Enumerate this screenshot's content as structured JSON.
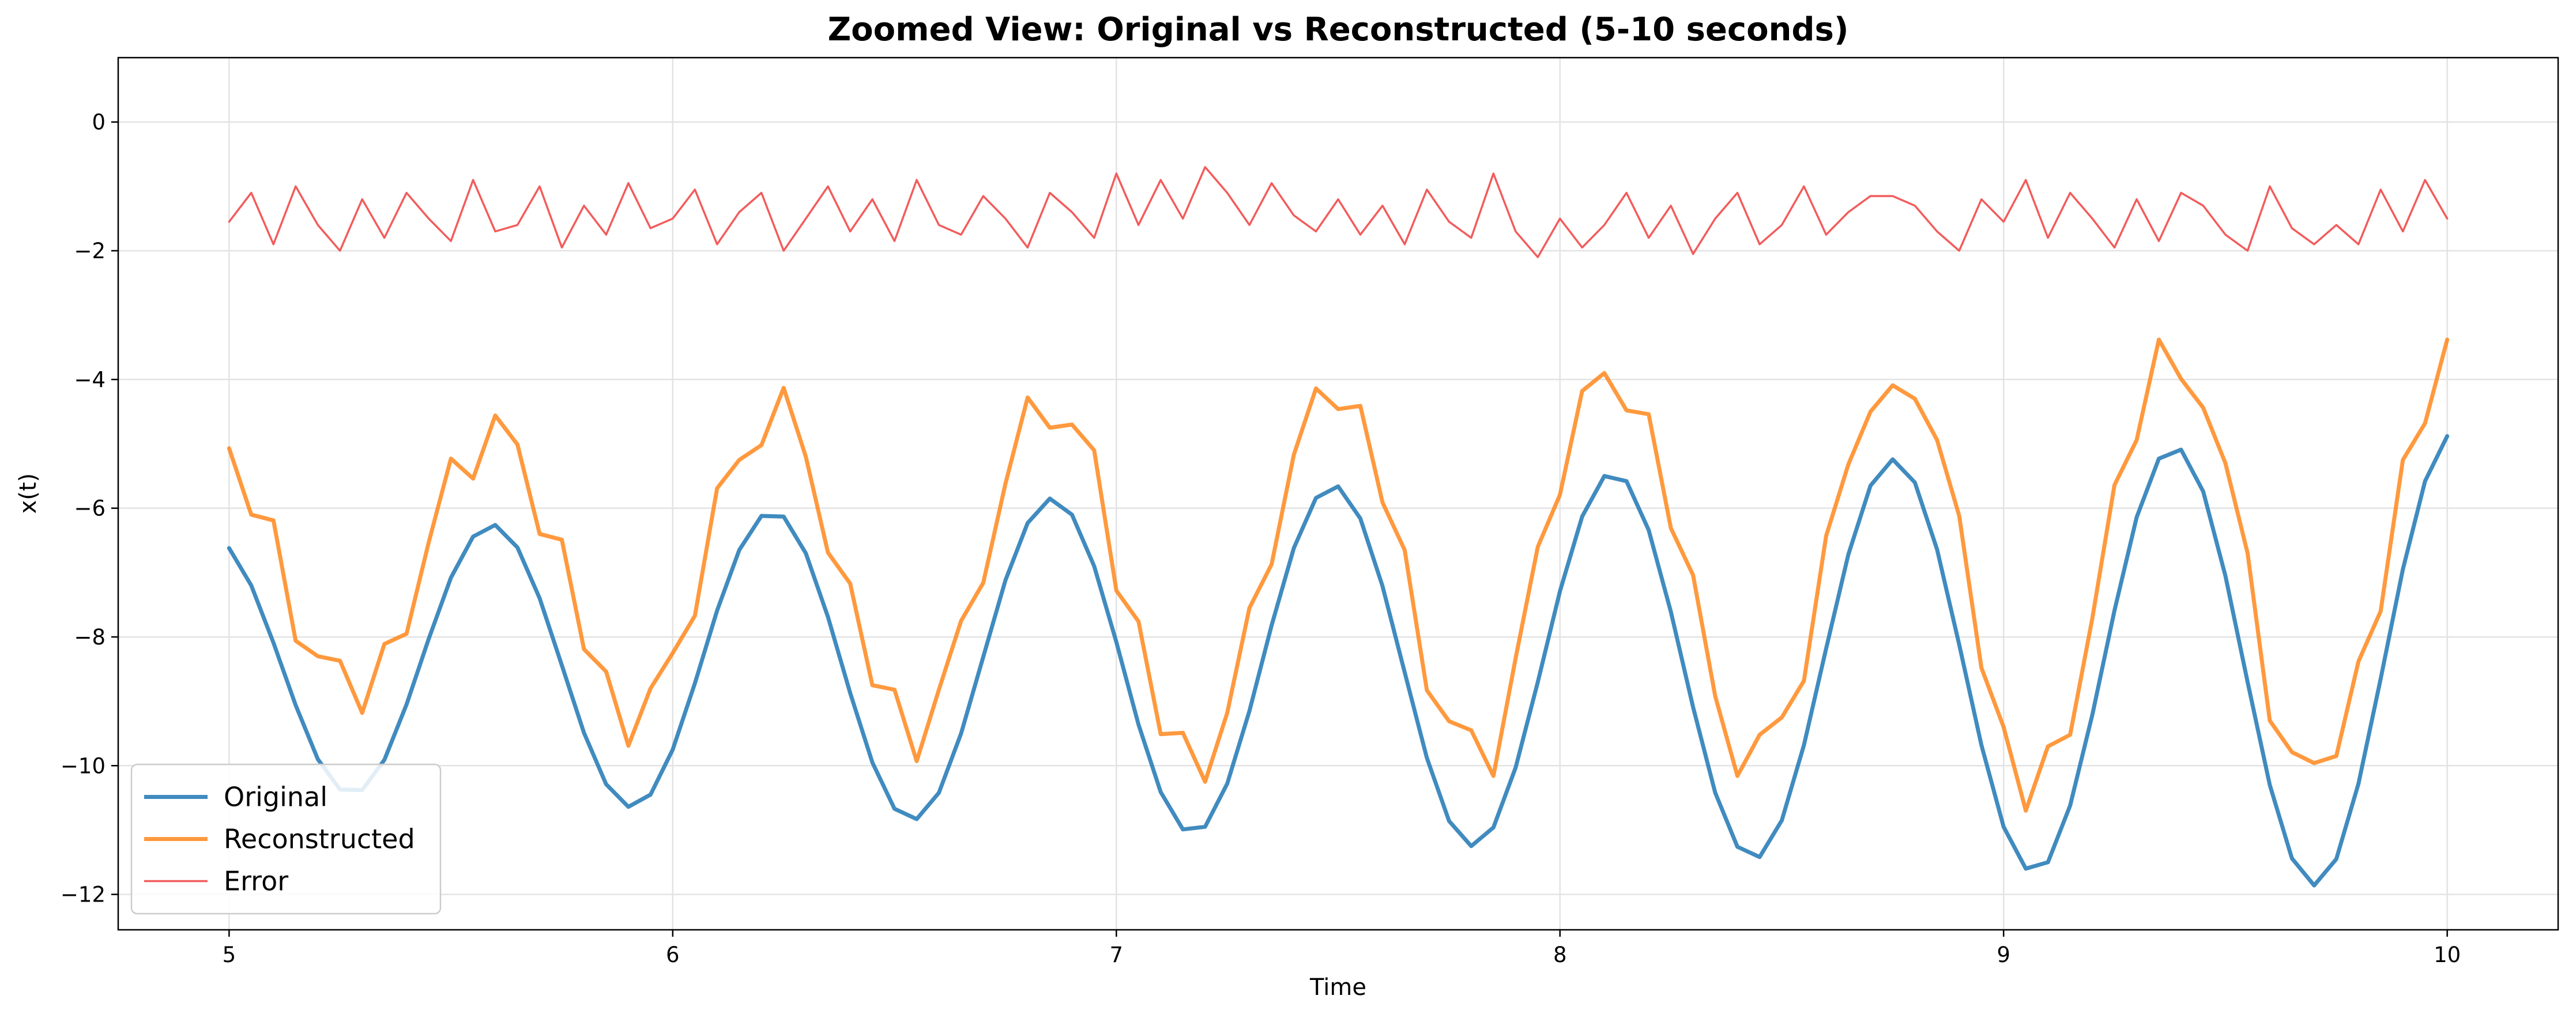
{
  "chart_data": {
    "type": "line",
    "title": "Zoomed View: Original vs Reconstructed (5-10 seconds)",
    "x_label": "Time",
    "y_label": "x(t)",
    "x": [
      5,
      5.05,
      5.1,
      5.15,
      5.2,
      5.25,
      5.3,
      5.35,
      5.4,
      5.45,
      5.5,
      5.55,
      5.6,
      5.65,
      5.7,
      5.75,
      5.8,
      5.85,
      5.9,
      5.95,
      6,
      6.05,
      6.1,
      6.15,
      6.2,
      6.25,
      6.3,
      6.35,
      6.4,
      6.45,
      6.5,
      6.55,
      6.6,
      6.65,
      6.7,
      6.75,
      6.8,
      6.85,
      6.9,
      6.95,
      7,
      7.05,
      7.1,
      7.15,
      7.2,
      7.25,
      7.3,
      7.35,
      7.4,
      7.45,
      7.5,
      7.55,
      7.6,
      7.65,
      7.7,
      7.75,
      7.8,
      7.85,
      7.9,
      7.95,
      8,
      8.05,
      8.1,
      8.15,
      8.2,
      8.25,
      8.3,
      8.35,
      8.4,
      8.45,
      8.5,
      8.55,
      8.6,
      8.65,
      8.7,
      8.75,
      8.8,
      8.85,
      8.9,
      8.95,
      9,
      9.05,
      9.1,
      9.15,
      9.2,
      9.25,
      9.3,
      9.35,
      9.4,
      9.45,
      9.5,
      9.55,
      9.6,
      9.65,
      9.7,
      9.75,
      9.8,
      9.85,
      9.9,
      9.95,
      10
    ],
    "series": [
      {
        "name": "Original",
        "color": "#1f77b4",
        "width": 7,
        "opacity": 0.85,
        "values": [
          -6.62,
          -7.2,
          -8.09,
          -9.06,
          -9.9,
          -10.37,
          -10.38,
          -9.91,
          -9.05,
          -8.03,
          -7.08,
          -6.44,
          -6.26,
          -6.61,
          -7.4,
          -8.44,
          -9.49,
          -10.29,
          -10.64,
          -10.45,
          -9.75,
          -8.72,
          -7.59,
          -6.65,
          -6.12,
          -6.13,
          -6.7,
          -7.69,
          -8.87,
          -9.95,
          -10.67,
          -10.83,
          -10.42,
          -9.5,
          -8.31,
          -7.12,
          -6.23,
          -5.85,
          -6.1,
          -6.9,
          -8.08,
          -9.36,
          -10.41,
          -10.99,
          -10.95,
          -10.28,
          -9.15,
          -7.82,
          -6.62,
          -5.84,
          -5.66,
          -6.16,
          -7.21,
          -8.55,
          -9.88,
          -10.86,
          -11.25,
          -10.96,
          -10.03,
          -8.7,
          -7.29,
          -6.13,
          -5.5,
          -5.58,
          -6.34,
          -7.61,
          -9.09,
          -10.42,
          -11.26,
          -11.42,
          -10.85,
          -9.68,
          -8.18,
          -6.72,
          -5.65,
          -5.24,
          -5.6,
          -6.64,
          -8.12,
          -9.68,
          -10.95,
          -11.6,
          -11.5,
          -10.62,
          -9.21,
          -7.59,
          -6.14,
          -5.23,
          -5.09,
          -5.74,
          -7.05,
          -8.7,
          -10.3,
          -11.44,
          -11.86,
          -11.45,
          -10.28,
          -8.65,
          -6.95,
          -5.58,
          -4.88
        ]
      },
      {
        "name": "Reconstructed",
        "color": "#ff7f0e",
        "width": 7,
        "opacity": 0.8,
        "values": [
          -5.07,
          -6.1,
          -6.19,
          -8.06,
          -8.3,
          -8.37,
          -9.18,
          -8.11,
          -7.95,
          -6.53,
          -5.23,
          -5.54,
          -4.56,
          -5.01,
          -6.4,
          -6.49,
          -8.19,
          -8.54,
          -9.69,
          -8.8,
          -8.25,
          -7.67,
          -5.69,
          -5.25,
          -5.02,
          -4.13,
          -5.2,
          -6.69,
          -7.17,
          -8.75,
          -8.82,
          -9.93,
          -8.82,
          -7.75,
          -7.16,
          -5.62,
          -4.28,
          -4.75,
          -4.7,
          -5.1,
          -7.28,
          -7.76,
          -9.51,
          -9.49,
          -10.25,
          -9.18,
          -7.55,
          -6.87,
          -5.17,
          -4.14,
          -4.46,
          -4.41,
          -5.91,
          -6.65,
          -8.83,
          -9.31,
          -9.45,
          -10.16,
          -8.33,
          -6.6,
          -5.79,
          -4.18,
          -3.9,
          -4.48,
          -4.54,
          -6.31,
          -7.04,
          -8.92,
          -10.16,
          -9.52,
          -9.25,
          -8.68,
          -6.43,
          -5.32,
          -4.5,
          -4.09,
          -4.3,
          -4.94,
          -6.12,
          -8.48,
          -9.4,
          -10.7,
          -9.7,
          -9.52,
          -7.71,
          -5.64,
          -4.94,
          -3.38,
          -3.99,
          -4.44,
          -5.3,
          -6.7,
          -9.3,
          -9.79,
          -9.96,
          -9.85,
          -8.38,
          -7.6,
          -5.25,
          -4.68,
          -3.38
        ]
      },
      {
        "name": "Error",
        "color": "#f25c5c",
        "width": 3.5,
        "opacity": 1,
        "values": [
          -1.55,
          -1.1,
          -1.9,
          -1.0,
          -1.6,
          -2.0,
          -1.2,
          -1.8,
          -1.1,
          -1.5,
          -1.85,
          -0.9,
          -1.7,
          -1.6,
          -1.0,
          -1.95,
          -1.3,
          -1.75,
          -0.95,
          -1.65,
          -1.5,
          -1.05,
          -1.9,
          -1.4,
          -1.1,
          -2.0,
          -1.5,
          -1.0,
          -1.7,
          -1.2,
          -1.85,
          -0.9,
          -1.6,
          -1.75,
          -1.15,
          -1.5,
          -1.95,
          -1.1,
          -1.4,
          -1.8,
          -0.8,
          -1.6,
          -0.9,
          -1.5,
          -0.7,
          -1.1,
          -1.6,
          -0.95,
          -1.45,
          -1.7,
          -1.2,
          -1.75,
          -1.3,
          -1.9,
          -1.05,
          -1.55,
          -1.8,
          -0.8,
          -1.7,
          -2.1,
          -1.5,
          -1.95,
          -1.6,
          -1.1,
          -1.8,
          -1.3,
          -2.05,
          -1.5,
          -1.1,
          -1.9,
          -1.6,
          -1.0,
          -1.75,
          -1.4,
          -1.15,
          -1.15,
          -1.3,
          -1.7,
          -2.0,
          -1.2,
          -1.55,
          -0.9,
          -1.8,
          -1.1,
          -1.5,
          -1.95,
          -1.2,
          -1.85,
          -1.1,
          -1.3,
          -1.75,
          -2.0,
          -1.0,
          -1.65,
          -1.9,
          -1.6,
          -1.9,
          -1.05,
          -1.7,
          -0.9,
          -1.5
        ]
      }
    ],
    "xlim": [
      4.75,
      10.25
    ],
    "ylim": [
      -12.55,
      1.0
    ],
    "xticks": [
      5,
      6,
      7,
      8,
      9,
      10
    ],
    "yticks": [
      {
        "value": -12,
        "label": "−12"
      },
      {
        "value": -10,
        "label": "−10"
      },
      {
        "value": -8,
        "label": "−8"
      },
      {
        "value": -6,
        "label": "−6"
      },
      {
        "value": -4,
        "label": "−4"
      },
      {
        "value": -2,
        "label": "−2"
      },
      0
    ],
    "grid": true,
    "legend": "lower left"
  }
}
